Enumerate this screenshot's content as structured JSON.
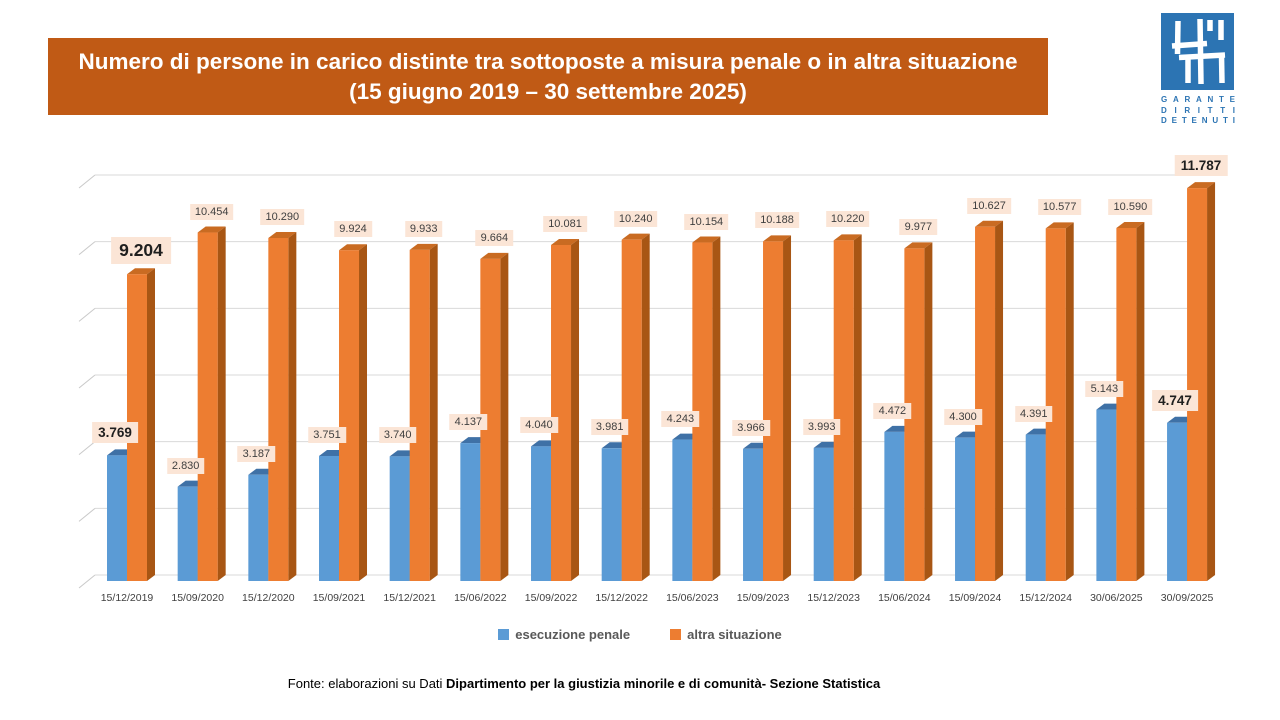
{
  "title": {
    "line1": "Numero di persone in carico distinte tra sottoposte a misura penale o in altra situazione",
    "line2": "(15 giugno 2019 – 30 settembre 2025)"
  },
  "logo": {
    "lines": [
      "GARANTE",
      "DIRITTI",
      "DETENUTI"
    ],
    "color": "#2C74B3"
  },
  "colors": {
    "banner_bg": "#C05A15",
    "label_bg": "#FBE5D6",
    "gridline": "#D9D9D9",
    "grid_tick": "#C9C9C9"
  },
  "chart_data": {
    "type": "bar",
    "style": "3d-clustered-column",
    "title": "Numero di persone in carico distinte tra sottoposte a misura penale o in altra situazione (15 giugno 2019 – 30 settembre 2025)",
    "categories": [
      "15/12/2019",
      "15/09/2020",
      "15/12/2020",
      "15/09/2021",
      "15/12/2021",
      "15/06/2022",
      "15/09/2022",
      "15/12/2022",
      "15/06/2023",
      "15/09/2023",
      "15/12/2023",
      "15/06/2024",
      "15/09/2024",
      "15/12/2024",
      "30/06/2025",
      "30/09/2025"
    ],
    "series": [
      {
        "name": "esecuzione penale",
        "color": "#5B9BD5",
        "color_top": "#3F71A6",
        "color_side": "#41719C",
        "values": [
          3769,
          2830,
          3187,
          3751,
          3740,
          4137,
          4040,
          3981,
          4243,
          3966,
          3993,
          4472,
          4300,
          4391,
          5143,
          4747
        ]
      },
      {
        "name": "altra situazione",
        "color": "#ED7D31",
        "color_top": "#C96B22",
        "color_side": "#A85614",
        "values": [
          9204,
          10454,
          10290,
          9924,
          9933,
          9664,
          10081,
          10240,
          10154,
          10188,
          10220,
          9977,
          10627,
          10577,
          10590,
          11787
        ]
      }
    ],
    "xlabel": "",
    "ylabel": "",
    "ylim": [
      0,
      12000
    ],
    "grid_step": 2000,
    "grid": true,
    "legend_position": "bottom",
    "data_labels": true,
    "thousands_separator": "."
  },
  "footer": {
    "prefix": "Fonte:  elaborazioni su Dati ",
    "bold": "Dipartimento per la giustizia minorile e di comunità- Sezione Statistica"
  }
}
